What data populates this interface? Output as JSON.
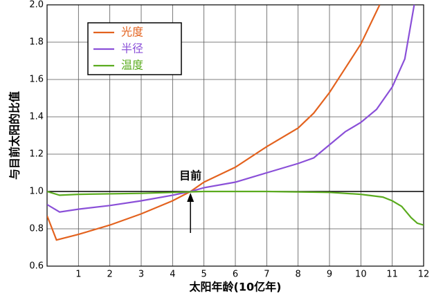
{
  "chart_data": {
    "type": "line",
    "xlabel": "太阳年龄(10亿年)",
    "ylabel": "与目前太阳的比值",
    "xlim": [
      0,
      12
    ],
    "xticks": [
      1,
      2,
      3,
      4,
      5,
      6,
      7,
      8,
      9,
      10,
      11,
      12
    ],
    "ylim": [
      0.6,
      2.0
    ],
    "yticks": [
      0.6,
      0.8,
      {
        "value": 1.0,
        "label": "1.0"
      },
      1.2,
      1.4,
      1.6,
      1.8,
      {
        "value": 2.0,
        "label": "2.0"
      }
    ],
    "grid": true,
    "legend": "upper left",
    "annotation": {
      "text": "目前",
      "x": 4.57,
      "y": 1.0
    },
    "series": [
      {
        "name": "光度",
        "color": "#e3621e",
        "x": [
          0,
          0.3,
          1,
          2,
          3,
          4,
          4.57,
          5,
          6,
          7,
          8,
          8.5,
          9,
          9.5,
          10,
          10.6
        ],
        "values": [
          0.87,
          0.74,
          0.77,
          0.82,
          0.88,
          0.95,
          1.0,
          1.05,
          1.13,
          1.24,
          1.34,
          1.42,
          1.53,
          1.66,
          1.79,
          2.0
        ]
      },
      {
        "name": "半径",
        "color": "#8a4fd8",
        "x": [
          0,
          0.4,
          1,
          2,
          3,
          4,
          4.57,
          5,
          6,
          7,
          8,
          8.5,
          9,
          9.5,
          10,
          10.5,
          11,
          11.4,
          11.7
        ],
        "values": [
          0.93,
          0.89,
          0.905,
          0.925,
          0.95,
          0.98,
          1.0,
          1.02,
          1.05,
          1.1,
          1.15,
          1.18,
          1.25,
          1.32,
          1.37,
          1.44,
          1.56,
          1.71,
          2.0
        ]
      },
      {
        "name": "温度",
        "color": "#5aab1e",
        "x": [
          0,
          0.4,
          1,
          3,
          5,
          7,
          9,
          10,
          10.7,
          11,
          11.3,
          11.6,
          11.8,
          12
        ],
        "values": [
          1.0,
          0.98,
          0.985,
          0.99,
          1.0,
          1.0,
          0.995,
          0.985,
          0.97,
          0.95,
          0.92,
          0.86,
          0.83,
          0.82
        ]
      }
    ]
  }
}
